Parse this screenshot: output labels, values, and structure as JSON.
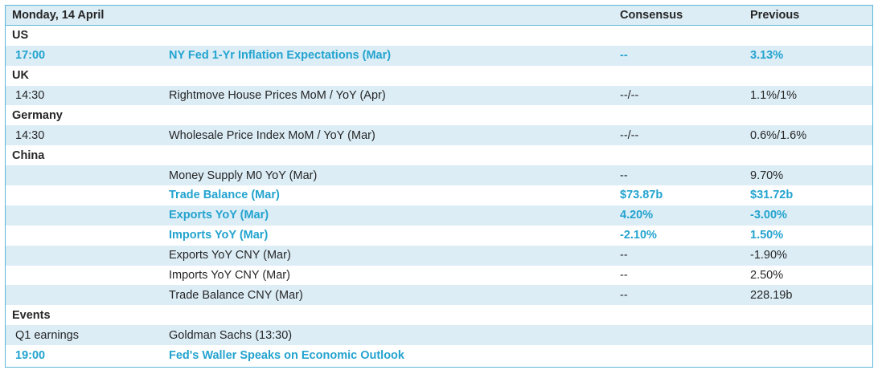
{
  "header": {
    "date": "Monday, 14 April",
    "consensus_label": "Consensus",
    "previous_label": "Previous"
  },
  "sections": [
    {
      "name": "US",
      "rows": [
        {
          "time": "17:00",
          "event": "NY Fed 1-Yr Inflation Expectations (Mar)",
          "consensus": "--",
          "previous": "3.13%",
          "highlight": true
        }
      ]
    },
    {
      "name": "UK",
      "rows": [
        {
          "time": "14:30",
          "event": "Rightmove House Prices MoM / YoY (Apr)",
          "consensus": "--/--",
          "previous": "1.1%/1%",
          "highlight": false
        }
      ]
    },
    {
      "name": "Germany",
      "rows": [
        {
          "time": "14:30",
          "event": "Wholesale Price Index MoM / YoY (Mar)",
          "consensus": "--/--",
          "previous": "0.6%/1.6%",
          "highlight": false
        }
      ]
    },
    {
      "name": "China",
      "rows": [
        {
          "time": "",
          "event": "Money Supply M0 YoY (Mar)",
          "consensus": "--",
          "previous": "9.70%",
          "highlight": false
        },
        {
          "time": "",
          "event": "Trade Balance (Mar)",
          "consensus": "$73.87b",
          "previous": "$31.72b",
          "highlight": true
        },
        {
          "time": "",
          "event": "Exports YoY (Mar)",
          "consensus": "4.20%",
          "previous": "-3.00%",
          "highlight": true
        },
        {
          "time": "",
          "event": "Imports YoY (Mar)",
          "consensus": "-2.10%",
          "previous": "1.50%",
          "highlight": true
        },
        {
          "time": "",
          "event": "Exports YoY CNY (Mar)",
          "consensus": "--",
          "previous": "-1.90%",
          "highlight": false
        },
        {
          "time": "",
          "event": "Imports YoY CNY (Mar)",
          "consensus": "--",
          "previous": "2.50%",
          "highlight": false
        },
        {
          "time": "",
          "event": "Trade Balance CNY (Mar)",
          "consensus": "--",
          "previous": "228.19b",
          "highlight": false
        }
      ]
    },
    {
      "name": "Events",
      "rows": [
        {
          "time": "Q1 earnings",
          "event": "Goldman Sachs (13:30)",
          "consensus": "",
          "previous": "",
          "highlight": false
        },
        {
          "time": "19:00",
          "event": "Fed's Waller Speaks on Economic Outlook",
          "consensus": "",
          "previous": "",
          "highlight": true
        }
      ]
    }
  ]
}
